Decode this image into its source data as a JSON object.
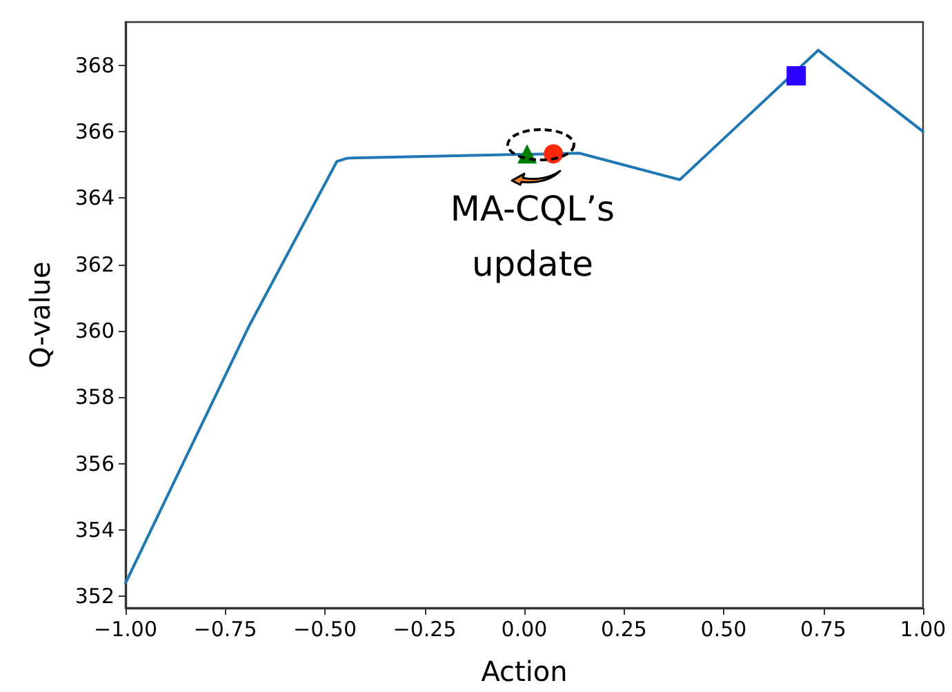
{
  "chart_data": {
    "type": "line",
    "xlabel": "Action",
    "ylabel": "Q-value",
    "xlim": [
      -1,
      1
    ],
    "xticks": [
      {
        "value": -1,
        "label": "−1.00"
      },
      {
        "value": -0.75,
        "label": "−0.75"
      },
      {
        "value": -0.5,
        "label": "−0.50"
      },
      {
        "value": -0.25,
        "label": "−0.25"
      },
      {
        "value": 0,
        "label": "0.00"
      },
      {
        "value": 0.25,
        "label": "0.25"
      },
      {
        "value": 0.5,
        "label": "0.50"
      },
      {
        "value": 0.75,
        "label": "0.75"
      },
      {
        "value": 1,
        "label": "1.00"
      }
    ],
    "ylim": [
      351.65,
      369.3
    ],
    "yticks": [
      352,
      354,
      356,
      358,
      360,
      362,
      364,
      366,
      368
    ],
    "grid": false,
    "series": [
      {
        "color": "#1f77b4",
        "x": [
          -1,
          -0.744,
          -0.692,
          -0.47,
          -0.443,
          0.138,
          0.39,
          0.737,
          1.0
        ],
        "values": [
          352.4,
          358.8,
          360.1,
          365.1,
          365.2,
          365.35,
          364.55,
          368.45,
          366.0
        ]
      },
      {
        "type": "scatter",
        "marker": "triangle",
        "color": "#008000",
        "x": [
          0.007
        ],
        "values": [
          365.33
        ]
      },
      {
        "type": "scatter",
        "marker": "circle",
        "color": "#ff2a0a",
        "x": [
          0.073
        ],
        "values": [
          365.33
        ]
      },
      {
        "type": "scatter",
        "marker": "square",
        "color": "#2a00ff",
        "x": [
          0.682
        ],
        "values": [
          367.68
        ]
      }
    ],
    "annotations": [
      "MA-CQL’s\nupdate"
    ]
  }
}
